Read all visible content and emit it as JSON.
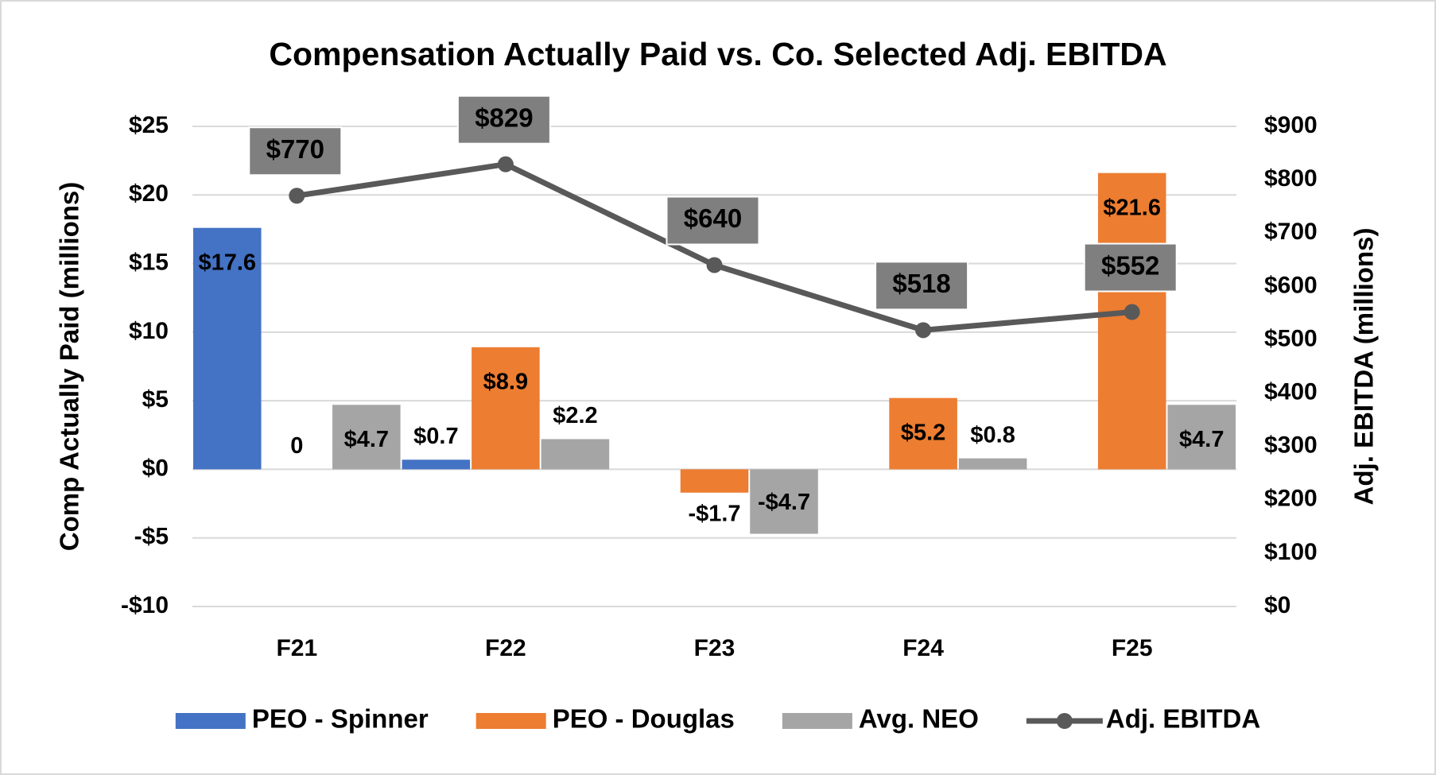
{
  "chart_data": {
    "type": "bar",
    "title": "Compensation Actually Paid vs. Co. Selected Adj. EBITDA",
    "y_label": "Comp Actually Paid (millions)",
    "y2_label": "Adj. EBITDA (millions)",
    "categories": [
      "F21",
      "F22",
      "F23",
      "F24",
      "F25"
    ],
    "series": [
      {
        "name": "PEO - Spinner",
        "color": "#4472c4",
        "type": "bar",
        "values": [
          17.6,
          0.7,
          null,
          null,
          null
        ],
        "value_labels": [
          "$17.6",
          "$0.7",
          null,
          null,
          null
        ]
      },
      {
        "name": "PEO - Douglas",
        "color": "#ed7d31",
        "type": "bar",
        "values": [
          0,
          8.9,
          -1.7,
          5.2,
          21.6
        ],
        "value_labels": [
          "0",
          "$8.9",
          "-$1.7",
          "$5.2",
          "$21.6"
        ]
      },
      {
        "name": "Avg. NEO",
        "color": "#a5a5a5",
        "type": "bar",
        "values": [
          4.7,
          2.2,
          -4.7,
          0.8,
          4.7
        ],
        "value_labels": [
          "$4.7",
          "$2.2",
          "-$4.7",
          "$0.8",
          "$4.7"
        ]
      },
      {
        "name": "Adj. EBITDA",
        "color": "#595959",
        "type": "line",
        "axis": "y2",
        "values": [
          770,
          829,
          640,
          518,
          552
        ],
        "value_labels": [
          "$770",
          "$829",
          "$640",
          "$518",
          "$552"
        ]
      }
    ],
    "ylim": [
      -10,
      25
    ],
    "yticks": [
      {
        "value": -10,
        "label": "-$10"
      },
      {
        "value": -5,
        "label": "-$5"
      },
      {
        "value": 0,
        "label": "$0"
      },
      {
        "value": 5,
        "label": "$5"
      },
      {
        "value": 10,
        "label": "$10"
      },
      {
        "value": 15,
        "label": "$15"
      },
      {
        "value": 20,
        "label": "$20"
      },
      {
        "value": 25,
        "label": "$25"
      }
    ],
    "y2lim": [
      0,
      900
    ],
    "y2ticks": [
      {
        "value": 0,
        "label": "$0"
      },
      {
        "value": 100,
        "label": "$100"
      },
      {
        "value": 200,
        "label": "$200"
      },
      {
        "value": 300,
        "label": "$300"
      },
      {
        "value": 400,
        "label": "$400"
      },
      {
        "value": 500,
        "label": "$500"
      },
      {
        "value": 600,
        "label": "$600"
      },
      {
        "value": 700,
        "label": "$700"
      },
      {
        "value": 800,
        "label": "$800"
      },
      {
        "value": 900,
        "label": "$900"
      }
    ],
    "grid": true,
    "legend": "bottom"
  }
}
